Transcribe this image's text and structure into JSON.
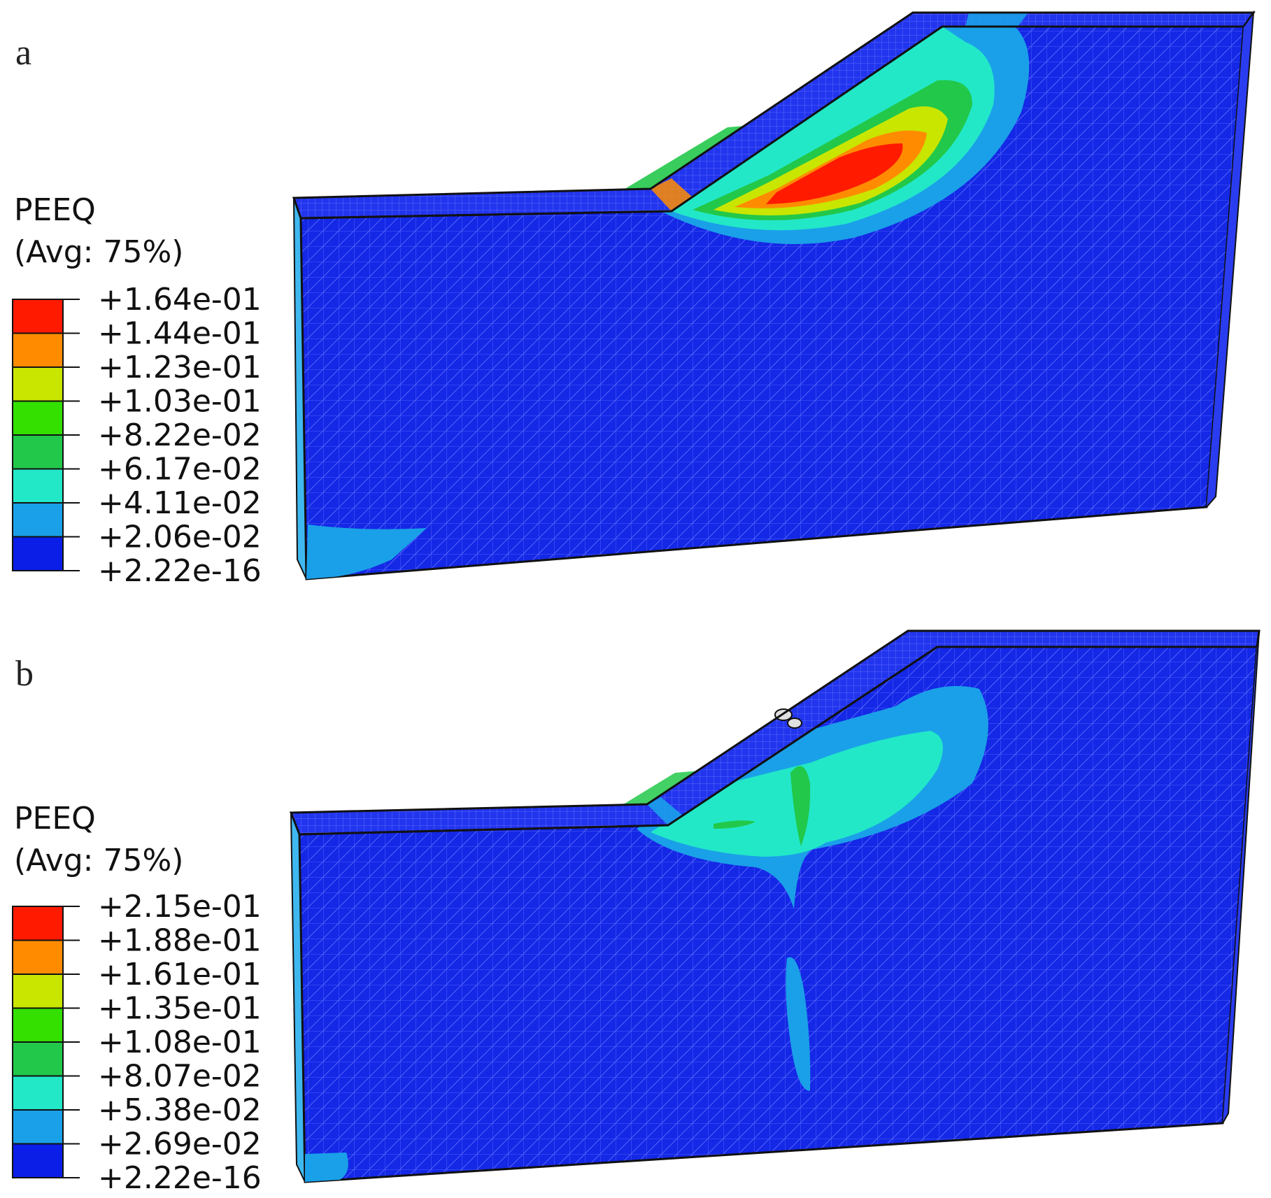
{
  "panels": [
    {
      "id": "a",
      "letter": "a",
      "legend": {
        "variable": "PEEQ",
        "averaging": "(Avg: 75%)",
        "ticks": [
          "+1.64e-01",
          "+1.44e-01",
          "+1.23e-01",
          "+1.03e-01",
          "+8.22e-02",
          "+6.17e-02",
          "+4.11e-02",
          "+2.06e-02",
          "+2.22e-16"
        ]
      },
      "tick_values": [
        0.164,
        0.144,
        0.123,
        0.103,
        0.0822,
        0.0617,
        0.0411,
        0.0206,
        2.22e-16
      ]
    },
    {
      "id": "b",
      "letter": "b",
      "legend": {
        "variable": "PEEQ",
        "averaging": "(Avg: 75%)",
        "ticks": [
          "+2.15e-01",
          "+1.88e-01",
          "+1.61e-01",
          "+1.35e-01",
          "+1.08e-01",
          "+8.07e-02",
          "+5.38e-02",
          "+2.69e-02",
          "+2.22e-16"
        ]
      },
      "tick_values": [
        0.215,
        0.188,
        0.161,
        0.135,
        0.108,
        0.0807,
        0.0538,
        0.0269,
        2.22e-16
      ]
    }
  ],
  "colors": {
    "band_colors_top_to_bottom": [
      "#ff1a00",
      "#ff8c00",
      "#c8e600",
      "#33e000",
      "#22c84a",
      "#22e8c8",
      "#1aa0e8",
      "#0a1ee8"
    ],
    "mesh_base": "#1428e6",
    "mesh_side": "#2a3cf0",
    "mesh_line": "#6a78ff",
    "outline": "#111111"
  }
}
